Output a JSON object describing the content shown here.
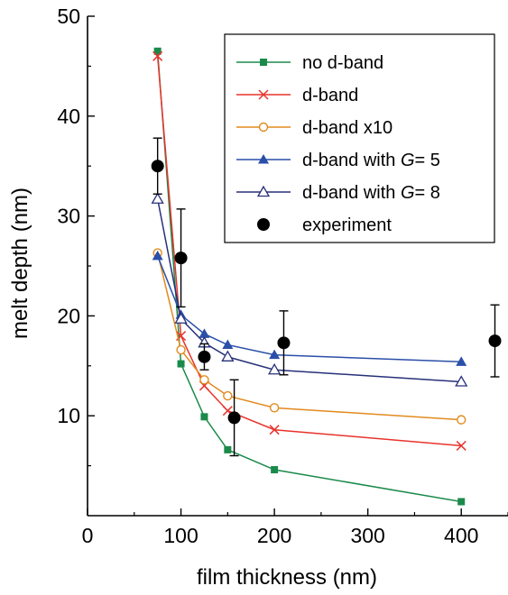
{
  "chart_data": {
    "type": "scatter",
    "xlabel": "film thickness (nm)",
    "ylabel": "melt depth (nm)",
    "xlim": [
      0,
      450
    ],
    "ylim": [
      0,
      50
    ],
    "xticks": [
      0,
      100,
      200,
      300,
      400
    ],
    "yticks": [
      10,
      20,
      30,
      40,
      50
    ],
    "legend_position": "top-right",
    "series": [
      {
        "name": "no d-band",
        "color": "#1a8a4a",
        "marker": "square-filled",
        "line": true,
        "x": [
          75,
          100,
          125,
          150,
          200,
          400
        ],
        "y": [
          46.5,
          15.2,
          9.9,
          6.6,
          4.6,
          1.4
        ]
      },
      {
        "name": "d-band",
        "color": "#e8332c",
        "marker": "cross",
        "line": true,
        "x": [
          75,
          100,
          125,
          150,
          200,
          400
        ],
        "y": [
          46.0,
          18.0,
          13.0,
          10.5,
          8.6,
          7.0
        ]
      },
      {
        "name": "d-band x10",
        "color": "#e28a1e",
        "marker": "circle-open",
        "line": true,
        "x": [
          75,
          100,
          125,
          150,
          200,
          400
        ],
        "y": [
          26.3,
          16.6,
          13.6,
          12.0,
          10.8,
          9.6
        ]
      },
      {
        "name": "d-band with",
        "name_italic": "G",
        "name_suffix": "= 5",
        "color": "#2a4fa8",
        "marker": "triangle-filled",
        "line": true,
        "x": [
          75,
          100,
          125,
          150,
          200,
          400
        ],
        "y": [
          26.0,
          20.1,
          18.2,
          17.1,
          16.1,
          15.4
        ]
      },
      {
        "name": "d-band with",
        "name_italic": "G",
        "name_suffix": "= 8",
        "color": "#27307a",
        "marker": "triangle-open",
        "line": true,
        "x": [
          75,
          100,
          125,
          150,
          200,
          400
        ],
        "y": [
          31.7,
          19.7,
          17.3,
          15.9,
          14.6,
          13.4
        ]
      },
      {
        "name": "experiment",
        "color": "#000000",
        "marker": "circle-filled-large",
        "line": false,
        "x": [
          75,
          100,
          125,
          157,
          210,
          436
        ],
        "y": [
          35.0,
          25.8,
          15.9,
          9.8,
          17.3,
          17.5
        ],
        "error": [
          2.8,
          4.9,
          1.3,
          3.8,
          3.2,
          3.6
        ]
      }
    ]
  }
}
